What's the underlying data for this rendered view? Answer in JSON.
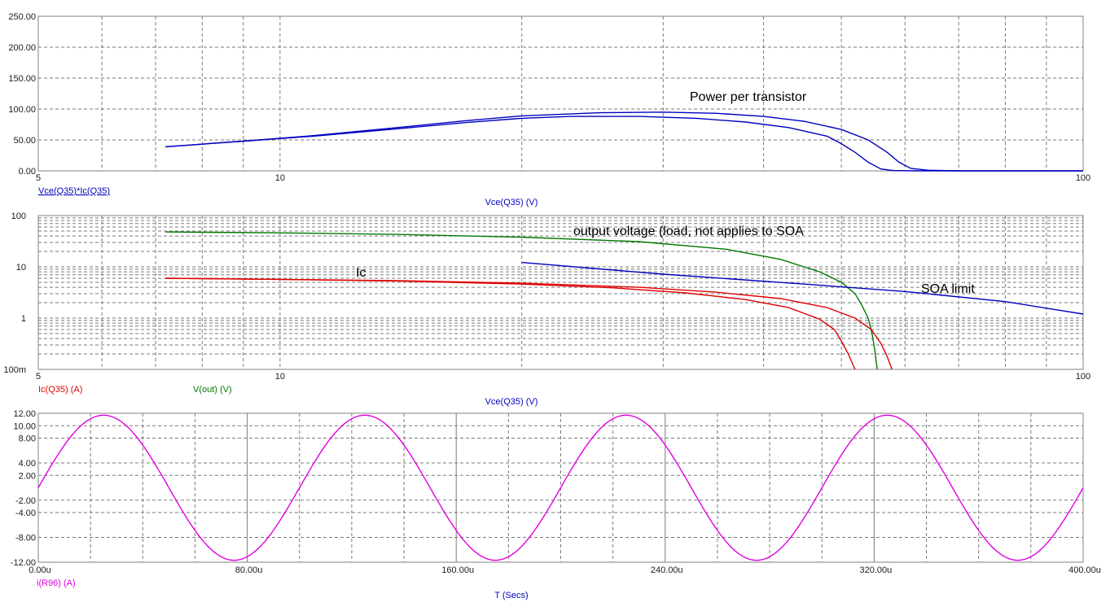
{
  "colors": {
    "grid": "#7a7a7a",
    "frame": "#808080",
    "power": "#0000c0",
    "soa": "#0000c0",
    "ic": "#e00000",
    "vout": "#007800",
    "iR96": "#e000e0",
    "axis_label": "#0000c0"
  },
  "chart_data": [
    {
      "id": "power",
      "type": "line",
      "x_scale": "log",
      "xlim": [
        5,
        100
      ],
      "ylim": [
        0,
        250
      ],
      "x_ticks": [
        {
          "v": 5,
          "label": "5"
        },
        {
          "v": 10,
          "label": "10"
        },
        {
          "v": 100,
          "label": "100"
        }
      ],
      "y_ticks": [
        {
          "v": 0,
          "label": "0.00"
        },
        {
          "v": 50,
          "label": "50.00"
        },
        {
          "v": 100,
          "label": "100.00"
        },
        {
          "v": 150,
          "label": "150.00"
        },
        {
          "v": 200,
          "label": "200.00"
        },
        {
          "v": 250,
          "label": "250.00"
        }
      ],
      "series_label": "Vce(Q35)*Ic(Q35)",
      "xlabel": "Vce(Q35) (V)",
      "annotation": "Power per transistor",
      "series": [
        {
          "color_key": "power",
          "points": [
            [
              7.2,
              39
            ],
            [
              9,
              48
            ],
            [
              11,
              56
            ],
            [
              14,
              68
            ],
            [
              17,
              78
            ],
            [
              20,
              85
            ],
            [
              23,
              88
            ],
            [
              28,
              88
            ],
            [
              33,
              85
            ],
            [
              38,
              79
            ],
            [
              43,
              70
            ],
            [
              48,
              56
            ],
            [
              50,
              44
            ],
            [
              52,
              30
            ],
            [
              54,
              14
            ],
            [
              56,
              3
            ],
            [
              58,
              0.5
            ],
            [
              62,
              0
            ],
            [
              100,
              0
            ]
          ]
        },
        {
          "color_key": "power",
          "points": [
            [
              7.2,
              39
            ],
            [
              9,
              48
            ],
            [
              11,
              57
            ],
            [
              14,
              70
            ],
            [
              17,
              81
            ],
            [
              20,
              89
            ],
            [
              25,
              94
            ],
            [
              30,
              95
            ],
            [
              35,
              93
            ],
            [
              40,
              88
            ],
            [
              45,
              80
            ],
            [
              50,
              67
            ],
            [
              54,
              50
            ],
            [
              57,
              30
            ],
            [
              59,
              14
            ],
            [
              61,
              4
            ],
            [
              64,
              1
            ],
            [
              70,
              0
            ],
            [
              100,
              0
            ]
          ]
        }
      ]
    },
    {
      "id": "current",
      "type": "line",
      "x_scale": "log",
      "y_scale": "log",
      "xlim": [
        5,
        100
      ],
      "ylim": [
        0.1,
        100
      ],
      "x_ticks": [
        {
          "v": 5,
          "label": "5"
        },
        {
          "v": 10,
          "label": "10"
        },
        {
          "v": 100,
          "label": "100"
        }
      ],
      "y_ticks": [
        {
          "v": 0.1,
          "label": "100m"
        },
        {
          "v": 1,
          "label": "1"
        },
        {
          "v": 10,
          "label": "10"
        },
        {
          "v": 100,
          "label": "100"
        }
      ],
      "series_labels": [
        {
          "text": "Ic(Q35) (A)",
          "color_key": "ic"
        },
        {
          "text": "V(out) (V)",
          "color_key": "vout"
        }
      ],
      "xlabel": "Vce(Q35) (V)",
      "annotations": [
        "output voltage (load, not applies to SOA",
        "Ic",
        "SOA limit"
      ],
      "series": [
        {
          "color_key": "vout",
          "points": [
            [
              7.2,
              48
            ],
            [
              10,
              46
            ],
            [
              14,
              43
            ],
            [
              20,
              38
            ],
            [
              28,
              31
            ],
            [
              36,
              22
            ],
            [
              42,
              14
            ],
            [
              47,
              8
            ],
            [
              50,
              5
            ],
            [
              52,
              3
            ],
            [
              53,
              1.8
            ],
            [
              54,
              1
            ],
            [
              54.6,
              0.5
            ],
            [
              55,
              0.25
            ],
            [
              55.4,
              0.1
            ]
          ]
        },
        {
          "color_key": "soa",
          "points": [
            [
              20,
              12.2
            ],
            [
              30,
              7.2
            ],
            [
              45,
              4.6
            ],
            [
              60,
              3.3
            ],
            [
              80,
              2.1
            ],
            [
              100,
              1.2
            ]
          ]
        },
        {
          "color_key": "ic",
          "points": [
            [
              7.2,
              6
            ],
            [
              10,
              5.7
            ],
            [
              14,
              5.3
            ],
            [
              20,
              4.6
            ],
            [
              26,
              3.9
            ],
            [
              32,
              3.1
            ],
            [
              38,
              2.3
            ],
            [
              43,
              1.6
            ],
            [
              47,
              0.95
            ],
            [
              49,
              0.6
            ],
            [
              50,
              0.36
            ],
            [
              51,
              0.2
            ],
            [
              52,
              0.1
            ]
          ]
        },
        {
          "color_key": "ic",
          "points": [
            [
              7.2,
              6
            ],
            [
              10,
              5.7
            ],
            [
              14,
              5.4
            ],
            [
              20,
              4.8
            ],
            [
              28,
              4
            ],
            [
              35,
              3.2
            ],
            [
              42,
              2.4
            ],
            [
              48,
              1.6
            ],
            [
              52,
              1
            ],
            [
              54.5,
              0.6
            ],
            [
              56,
              0.32
            ],
            [
              57,
              0.18
            ],
            [
              57.8,
              0.1
            ]
          ]
        }
      ]
    },
    {
      "id": "sine",
      "type": "line",
      "xlim": [
        0,
        400
      ],
      "ylim": [
        -12,
        12
      ],
      "x_ticks": [
        {
          "v": 0,
          "label": "0.00u"
        },
        {
          "v": 80,
          "label": "80.00u"
        },
        {
          "v": 160,
          "label": "160.00u"
        },
        {
          "v": 240,
          "label": "240.00u"
        },
        {
          "v": 320,
          "label": "320.00u"
        },
        {
          "v": 400,
          "label": "400.00u"
        }
      ],
      "y_ticks": [
        {
          "v": 12,
          "label": "12.00"
        },
        {
          "v": 10,
          "label": "10.00"
        },
        {
          "v": 8,
          "label": "8.00"
        },
        {
          "v": 4,
          "label": "4.00"
        },
        {
          "v": 2,
          "label": "2.00"
        },
        {
          "v": -2,
          "label": "-2.00"
        },
        {
          "v": -4,
          "label": "-4.00"
        },
        {
          "v": -8,
          "label": "-8.00"
        },
        {
          "v": -12,
          "label": "-12.00"
        }
      ],
      "series_label": "i(R96) (A)",
      "xlabel": "T (Secs)",
      "series": [
        {
          "color_key": "iR96",
          "amplitude": 11.7,
          "period": 100
        }
      ]
    }
  ]
}
